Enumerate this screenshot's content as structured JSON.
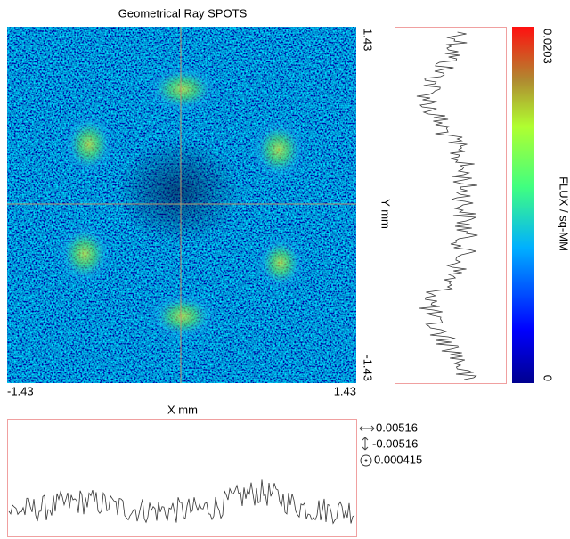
{
  "title": "Geometrical Ray SPOTS",
  "x_axis": {
    "label": "X mm",
    "min": "-1.43",
    "max": "1.43"
  },
  "y_axis": {
    "label": "Y mm",
    "min": "-1.43",
    "max": "1.43"
  },
  "colorbar": {
    "label": "FLUX / sq-MM",
    "min": "0",
    "max": "0.0203"
  },
  "stats": {
    "x_centroid": "0.00516",
    "y_centroid": "-0.00516",
    "rms_radius": "0.000415"
  }
}
